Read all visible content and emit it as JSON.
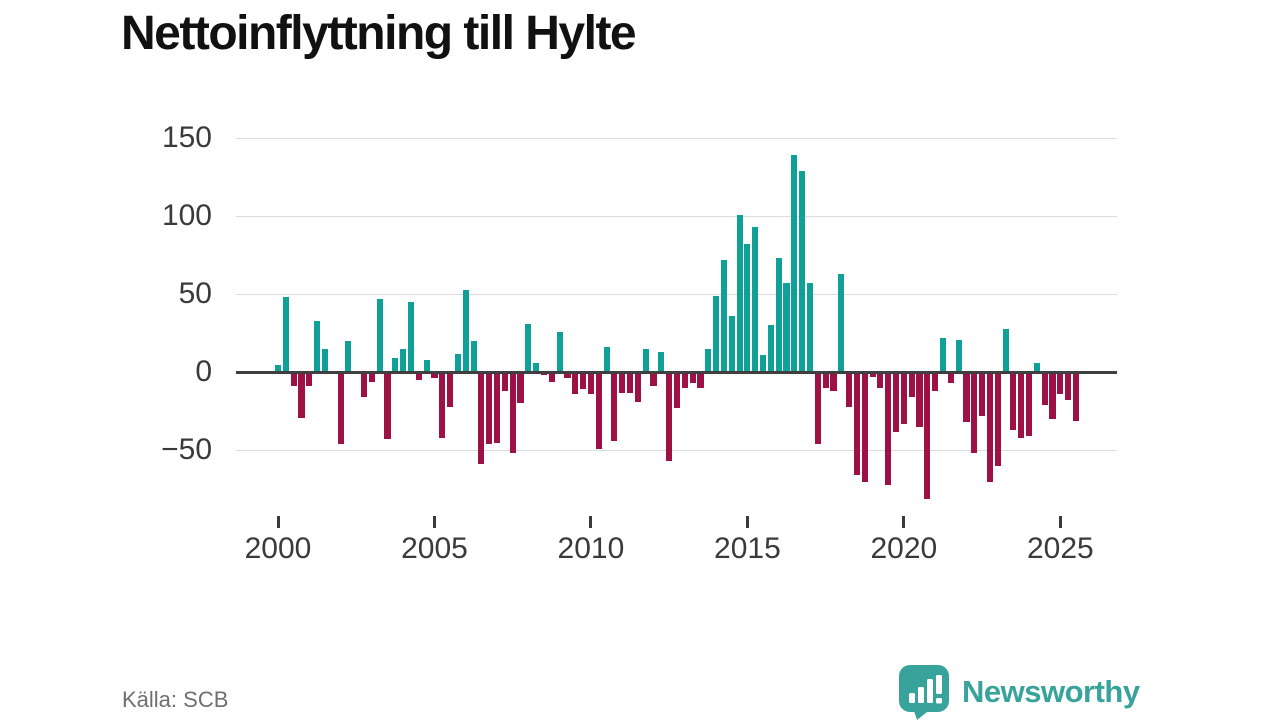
{
  "title": "Nettoinflyttning till Hylte",
  "source": "Källa: SCB",
  "logo": {
    "text": "Newsworthy"
  },
  "colors": {
    "positive_bar": "#0fa198",
    "negative_bar": "#9e1145",
    "zero_axis": "#3f3f3f",
    "gridline": "#dcdcdc",
    "axis_label": "#3a3a3a",
    "title_text": "#111111",
    "source_text": "#6f6f6f",
    "logo_teal": "#38a39b"
  },
  "chart_data": {
    "type": "bar",
    "title": "Nettoinflyttning till Hylte",
    "x_unit": "quarter",
    "start_period": "2000-Q1",
    "end_period": "2025-Q3",
    "xlabel": "",
    "ylabel": "",
    "ylim": [
      -90,
      160
    ],
    "grid": true,
    "yticks": [
      150,
      100,
      50,
      0,
      -50
    ],
    "xticks": [
      2000,
      2005,
      2010,
      2015,
      2020,
      2025
    ],
    "values": [
      5,
      48,
      -9,
      -29,
      -9,
      33,
      15,
      0,
      -46,
      20,
      0,
      -16,
      -6,
      47,
      -43,
      9,
      15,
      45,
      -5,
      8,
      -4,
      -42,
      -22,
      12,
      53,
      20,
      -59,
      -46,
      -45,
      -12,
      -52,
      -20,
      31,
      6,
      -2,
      -6,
      26,
      -4,
      -14,
      -11,
      -14,
      -49,
      16,
      -44,
      -13,
      -13,
      -19,
      15,
      -9,
      13,
      -57,
      -23,
      -10,
      -7,
      -10,
      15,
      49,
      72,
      36,
      101,
      82,
      93,
      11,
      30,
      73,
      57,
      139,
      129,
      57,
      -46,
      -10,
      -12,
      63,
      -22,
      -66,
      -70,
      -3,
      -10,
      -72,
      -38,
      -33,
      -16,
      -35,
      -81,
      -12,
      22,
      -7,
      21,
      -32,
      -52,
      -28,
      -70,
      -60,
      28,
      -37,
      -42,
      -41,
      6,
      -21,
      -30,
      -14,
      -18,
      -31
    ]
  }
}
